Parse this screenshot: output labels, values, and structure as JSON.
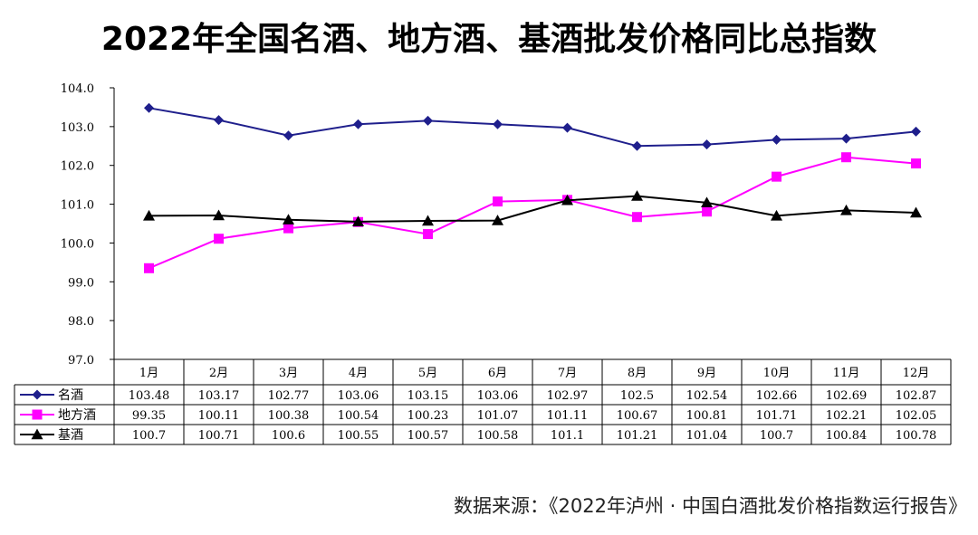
{
  "title": "2022年全国名酒、地方酒、基酒批发价格同比总指数",
  "source": "数据来源：《2022年泸州 · 中国白酒批发价格指数运行报告》",
  "chart_data": {
    "type": "line",
    "categories": [
      "1月",
      "2月",
      "3月",
      "4月",
      "5月",
      "6月",
      "7月",
      "8月",
      "9月",
      "10月",
      "11月",
      "12月"
    ],
    "ylim": [
      97.0,
      104.0
    ],
    "yticks": [
      "97.0",
      "98.0",
      "99.0",
      "100.0",
      "101.0",
      "102.0",
      "103.0",
      "104.0"
    ],
    "series": [
      {
        "name": "名酒",
        "color": "#1f1f8c",
        "marker": "diamond",
        "values": [
          103.48,
          103.17,
          102.77,
          103.06,
          103.15,
          103.06,
          102.97,
          102.5,
          102.54,
          102.66,
          102.69,
          102.87
        ],
        "labels": [
          "103.48",
          "103.17",
          "102.77",
          "103.06",
          "103.15",
          "103.06",
          "102.97",
          "102.5",
          "102.54",
          "102.66",
          "102.69",
          "102.87"
        ]
      },
      {
        "name": "地方酒",
        "color": "#ff00ff",
        "marker": "square",
        "values": [
          99.35,
          100.11,
          100.38,
          100.54,
          100.23,
          101.07,
          101.11,
          100.67,
          100.81,
          101.71,
          102.21,
          102.05
        ],
        "labels": [
          "99.35",
          "100.11",
          "100.38",
          "100.54",
          "100.23",
          "101.07",
          "101.11",
          "100.67",
          "100.81",
          "101.71",
          "102.21",
          "102.05"
        ]
      },
      {
        "name": "基酒",
        "color": "#000000",
        "marker": "triangle",
        "values": [
          100.7,
          100.71,
          100.6,
          100.55,
          100.57,
          100.58,
          101.1,
          101.21,
          101.04,
          100.7,
          100.84,
          100.78
        ],
        "labels": [
          "100.7",
          "100.71",
          "100.6",
          "100.55",
          "100.57",
          "100.58",
          "101.1",
          "101.21",
          "101.04",
          "100.7",
          "100.84",
          "100.78"
        ]
      }
    ],
    "legend": "data-table-left",
    "grid": false
  }
}
